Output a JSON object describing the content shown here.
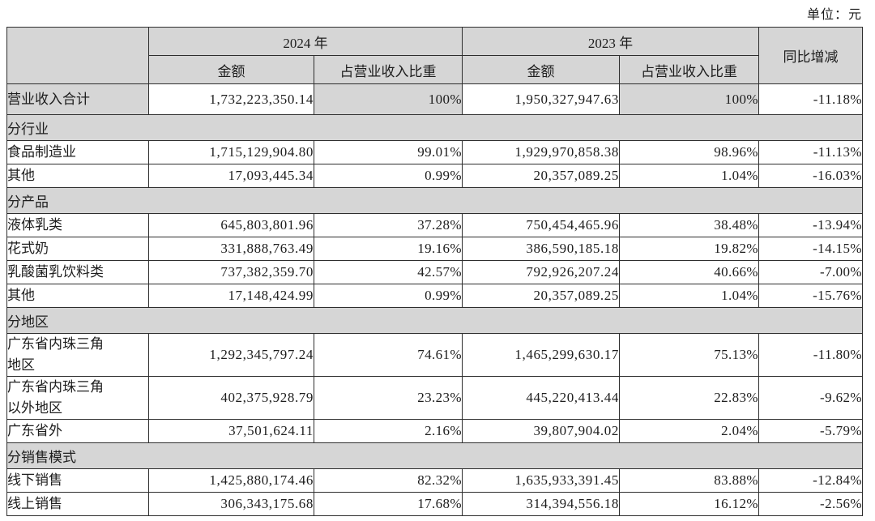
{
  "unit_label": "单位：元",
  "table": {
    "col_headers": {
      "y2024": "2024 年",
      "y2023": "2023 年",
      "amount": "金额",
      "ratio": "占营业收入比重",
      "yoy": "同比增减"
    },
    "rows": [
      {
        "type": "data",
        "highlight": true,
        "label": "营业收入合计",
        "a24": "1,732,223,350.14",
        "r24": "100%",
        "a23": "1,950,327,947.63",
        "r23": "100%",
        "yoy": "-11.18%"
      },
      {
        "type": "section",
        "label": "分行业"
      },
      {
        "type": "data",
        "label": "食品制造业",
        "a24": "1,715,129,904.80",
        "r24": "99.01%",
        "a23": "1,929,970,858.38",
        "r23": "98.96%",
        "yoy": "-11.13%"
      },
      {
        "type": "data",
        "label": "其他",
        "a24": "17,093,445.34",
        "r24": "0.99%",
        "a23": "20,357,089.25",
        "r23": "1.04%",
        "yoy": "-16.03%"
      },
      {
        "type": "section",
        "label": "分产品"
      },
      {
        "type": "data",
        "label": "液体乳类",
        "a24": "645,803,801.96",
        "r24": "37.28%",
        "a23": "750,454,465.96",
        "r23": "38.48%",
        "yoy": "-13.94%"
      },
      {
        "type": "data",
        "label": "花式奶",
        "a24": "331,888,763.49",
        "r24": "19.16%",
        "a23": "386,590,185.18",
        "r23": "19.82%",
        "yoy": "-14.15%"
      },
      {
        "type": "data",
        "label": "乳酸菌乳饮料类",
        "a24": "737,382,359.70",
        "r24": "42.57%",
        "a23": "792,926,207.24",
        "r23": "40.66%",
        "yoy": "-7.00%"
      },
      {
        "type": "data",
        "label": "其他",
        "a24": "17,148,424.99",
        "r24": "0.99%",
        "a23": "20,357,089.25",
        "r23": "1.04%",
        "yoy": "-15.76%"
      },
      {
        "type": "section",
        "label": "分地区"
      },
      {
        "type": "data",
        "label": "广东省内珠三角\n地区",
        "a24": "1,292,345,797.24",
        "r24": "74.61%",
        "a23": "1,465,299,630.17",
        "r23": "75.13%",
        "yoy": "-11.80%"
      },
      {
        "type": "data",
        "label": "广东省内珠三角\n以外地区",
        "a24": "402,375,928.79",
        "r24": "23.23%",
        "a23": "445,220,413.44",
        "r23": "22.83%",
        "yoy": "-9.62%"
      },
      {
        "type": "data",
        "label": "广东省外",
        "a24": "37,501,624.11",
        "r24": "2.16%",
        "a23": "39,807,904.02",
        "r23": "2.04%",
        "yoy": "-5.79%"
      },
      {
        "type": "section",
        "label": "分销售模式"
      },
      {
        "type": "data",
        "label": "线下销售",
        "a24": "1,425,880,174.46",
        "r24": "82.32%",
        "a23": "1,635,933,391.45",
        "r23": "83.88%",
        "yoy": "-12.84%"
      },
      {
        "type": "data",
        "label": "线上销售",
        "a24": "306,343,175.68",
        "r24": "17.68%",
        "a23": "314,394,556.18",
        "r23": "16.12%",
        "yoy": "-2.56%"
      }
    ]
  }
}
